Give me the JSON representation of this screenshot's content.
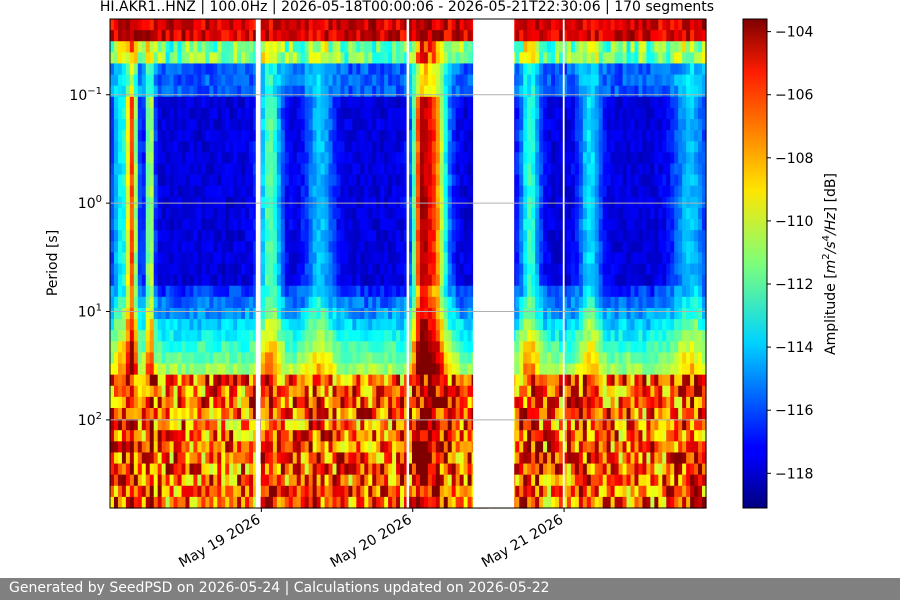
{
  "chart_data": {
    "type": "heatmap",
    "title": "HI.AKR1..HNZ | 100.0Hz | 2026-05-18T00:00:06 - 2026-05-21T22:30:06 | 170 segments",
    "ylabel": "Period [s]",
    "y_scale": "log",
    "y_inverted": true,
    "y_ticks": [
      {
        "value": 0.1,
        "base": "10",
        "exp": "−1"
      },
      {
        "value": 1,
        "base": "10",
        "exp": "0"
      },
      {
        "value": 10,
        "base": "10",
        "exp": "1"
      },
      {
        "value": 100,
        "base": "10",
        "exp": "2"
      }
    ],
    "ylim": [
      0.02,
      650
    ],
    "xlim": [
      "2026-05-18T00:00:06",
      "2026-05-21T22:30:06"
    ],
    "x_ticks": [
      {
        "value": "2026-05-19",
        "label": "May 19 2026"
      },
      {
        "value": "2026-05-20",
        "label": "May 20 2026"
      },
      {
        "value": "2026-05-21",
        "label": "May 21 2026"
      }
    ],
    "grid": "horizontal at y ticks",
    "colorbar": {
      "label_prefix": "Amplitude [",
      "label_math": "m",
      "label_sup1": "2",
      "label_mid": "/s",
      "label_sup2": "4",
      "label_end": "/Hz",
      "label_suffix": "] [dB]",
      "colormap": "jet",
      "range": [
        -119.1,
        -103.6
      ],
      "ticks": [
        -104,
        -106,
        -108,
        -110,
        -112,
        -114,
        -116,
        -118
      ]
    },
    "data_gaps": [
      {
        "start": "2026-05-18T23:07",
        "end": "2026-05-18T23:53"
      },
      {
        "start": "2026-05-19T23:02",
        "end": "2026-05-19T23:26"
      },
      {
        "start": "2026-05-20T09:34",
        "end": "2026-05-20T16:05"
      },
      {
        "start": "2026-05-20T23:48",
        "end": "2026-05-21T00:05"
      }
    ]
  },
  "footer": {
    "text": "Generated by SeedPSD on 2026-05-24 | Calculations updated on 2026-05-22"
  }
}
